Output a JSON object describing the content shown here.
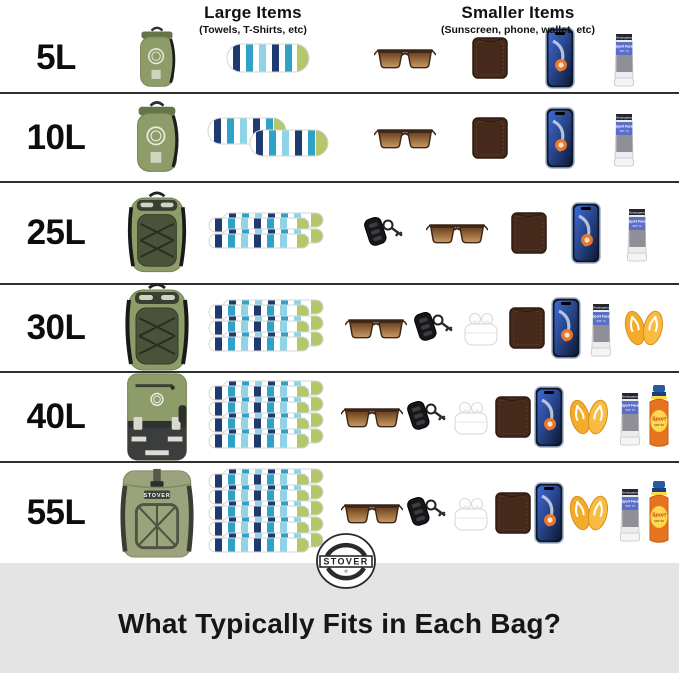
{
  "header": {
    "large": {
      "title": "Large Items",
      "subtitle": "(Towels, T-Shirts, etc)"
    },
    "smaller": {
      "title": "Smaller Items",
      "subtitle": "(Sunscreen, phone, wallet, etc)"
    }
  },
  "rows": [
    {
      "size": "5L",
      "bag": {
        "type": "dry-bag",
        "variant": "small"
      },
      "towels": {
        "count": 1,
        "arrangement": "single"
      },
      "items": [
        "sunglasses",
        "wallet",
        "phone",
        "sunscreen-tube"
      ]
    },
    {
      "size": "10L",
      "bag": {
        "type": "dry-bag",
        "variant": "tall"
      },
      "towels": {
        "count": 2,
        "arrangement": "pair"
      },
      "items": [
        "sunglasses",
        "wallet",
        "phone",
        "sunscreen-tube"
      ]
    },
    {
      "size": "25L",
      "bag": {
        "type": "backpack",
        "variant": "medium"
      },
      "towels": {
        "count": 2,
        "arrangement": "stack"
      },
      "items": [
        "car-key",
        "sunglasses",
        "wallet",
        "phone",
        "sunscreen-tube"
      ]
    },
    {
      "size": "30L",
      "bag": {
        "type": "backpack",
        "variant": "large"
      },
      "towels": {
        "count": 3,
        "arrangement": "stack"
      },
      "items": [
        "sunglasses",
        "car-key",
        "airpods",
        "wallet",
        "phone",
        "sunscreen-tube",
        "flip-flops"
      ]
    },
    {
      "size": "40L",
      "bag": {
        "type": "duffel-pack",
        "variant": "two-tone"
      },
      "towels": {
        "count": 4,
        "arrangement": "stack"
      },
      "items": [
        "sunglasses",
        "car-key",
        "airpods",
        "wallet",
        "phone",
        "flip-flops",
        "sunscreen-tube",
        "sunscreen-spray"
      ]
    },
    {
      "size": "55L",
      "bag": {
        "type": "rolltop-pack",
        "variant": "xl"
      },
      "towels": {
        "count": 5,
        "arrangement": "stack"
      },
      "items": [
        "sunglasses",
        "car-key",
        "airpods",
        "wallet",
        "phone",
        "flip-flops",
        "sunscreen-tube",
        "sunscreen-spray"
      ]
    }
  ],
  "footer": {
    "title": "What Typically Fits in Each Bag?",
    "brand": "STOVER"
  },
  "colors": {
    "olive": "#8d9c68",
    "olive_dark": "#66744a",
    "olive_panel": "#4a5239",
    "navy": "#1e3a6e",
    "teal": "#2fa3c7",
    "sky": "#8fd4e6",
    "lime": "#b4c76a",
    "footer_bg": "#e4e4e4",
    "divider": "#2e2e2e",
    "flipflop_yellow": "#f5ab2a",
    "spray_orange": "#e8731f",
    "label_blue": "#5b6fc9",
    "wallet_brown": "#452a1c",
    "lens_brown": "#6b3f1d"
  }
}
